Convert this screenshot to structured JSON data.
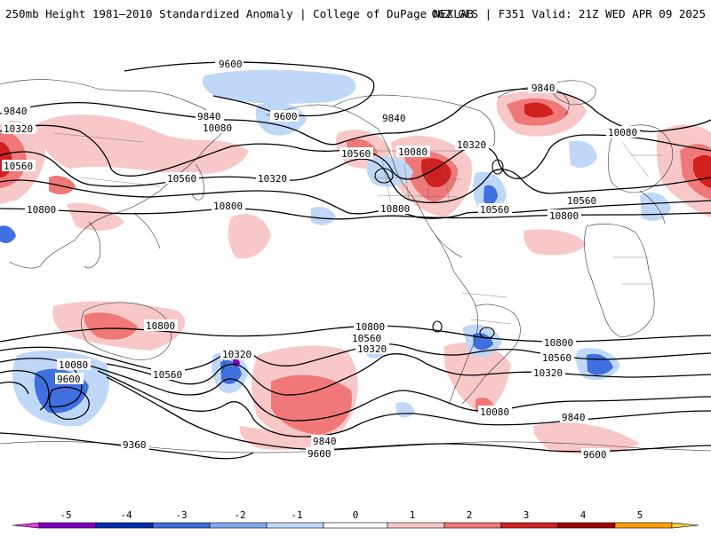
{
  "header": {
    "title": "250mb Height 1981–2010 Standardized Anomaly | College of DuPage NEXLAB",
    "run_info": "06Z GFS | F351 Valid: 21Z WED APR 09 2025"
  },
  "contour_labels": [
    {
      "text": "9600"
    },
    {
      "text": "9600"
    },
    {
      "text": "9840"
    },
    {
      "text": "9840"
    },
    {
      "text": "9840"
    },
    {
      "text": "9840"
    },
    {
      "text": "10320"
    },
    {
      "text": "10080"
    },
    {
      "text": "10080"
    },
    {
      "text": "10080"
    },
    {
      "text": "10320"
    },
    {
      "text": "10560"
    },
    {
      "text": "10560"
    },
    {
      "text": "10320"
    },
    {
      "text": "10560"
    },
    {
      "text": "10560"
    },
    {
      "text": "10560"
    },
    {
      "text": "10800"
    },
    {
      "text": "10800"
    },
    {
      "text": "10800"
    },
    {
      "text": "10800"
    },
    {
      "text": "10800"
    },
    {
      "text": "10800"
    },
    {
      "text": "10560"
    },
    {
      "text": "10320"
    },
    {
      "text": "10800"
    },
    {
      "text": "10560"
    },
    {
      "text": "10320"
    },
    {
      "text": "10080"
    },
    {
      "text": "9600"
    },
    {
      "text": "10560"
    },
    {
      "text": "10320"
    },
    {
      "text": "10080"
    },
    {
      "text": "9840"
    },
    {
      "text": "9600"
    },
    {
      "text": "9840"
    },
    {
      "text": "9360"
    },
    {
      "text": "9600"
    }
  ],
  "colorbar": {
    "ticks": [
      "-5",
      "-4",
      "-3",
      "-2",
      "-1",
      "0",
      "1",
      "2",
      "3",
      "4",
      "5"
    ],
    "colors": [
      "#e040e0",
      "#8000c0",
      "#0030b0",
      "#4070e0",
      "#c0d8f8",
      "#ffffff",
      "#f8c8c8",
      "#f07878",
      "#d02020",
      "#a00000",
      "#ffa000",
      "#ffd040"
    ]
  }
}
